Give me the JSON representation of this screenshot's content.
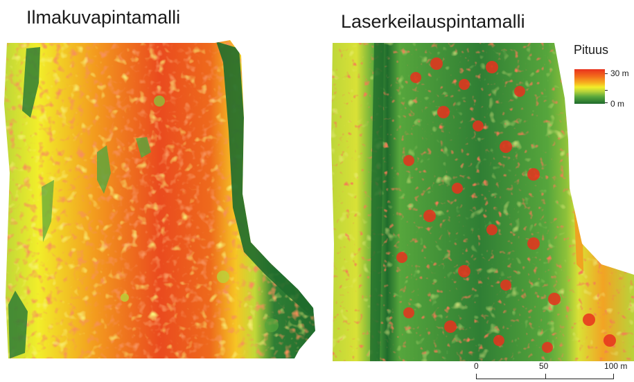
{
  "titles": {
    "left": "Ilmakuvapintamalli",
    "right": "Laserkeilauspintamalli"
  },
  "legend": {
    "title": "Pituus",
    "max_label": "30 m",
    "min_label": "0 m",
    "colors": [
      "#e8321e",
      "#f26a1c",
      "#f6b31f",
      "#f2ee2a",
      "#b8d43a",
      "#56a63c",
      "#1f6b2c"
    ]
  },
  "scalebar": {
    "labels": [
      "0",
      "50",
      "100 m"
    ]
  }
}
